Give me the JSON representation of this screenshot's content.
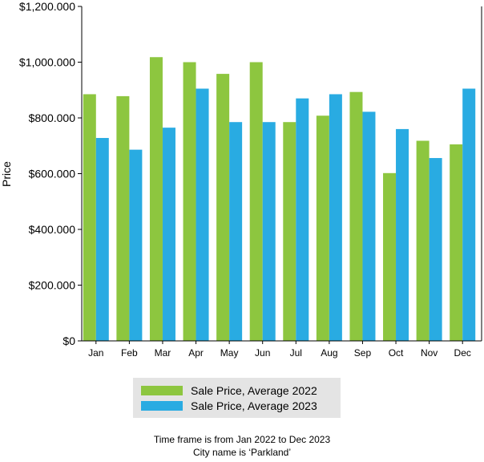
{
  "chart_data": {
    "type": "bar",
    "categories": [
      "Jan",
      "Feb",
      "Mar",
      "Apr",
      "May",
      "Jun",
      "Jul",
      "Aug",
      "Sep",
      "Oct",
      "Nov",
      "Dec"
    ],
    "series": [
      {
        "name": "Sale Price, Average 2022",
        "color": "#8dc63f",
        "values": [
          885000,
          878000,
          1018000,
          1000000,
          958000,
          1000000,
          785000,
          808000,
          893000,
          602000,
          718000,
          705000
        ]
      },
      {
        "name": "Sale Price, Average 2023",
        "color": "#29abe2",
        "values": [
          728000,
          686000,
          765000,
          905000,
          785000,
          785000,
          870000,
          885000,
          822000,
          760000,
          656000,
          905000
        ]
      }
    ],
    "ylabel": "Price",
    "xlabel": "",
    "ylim": [
      0,
      1200000
    ],
    "yticks": [
      0,
      200000,
      400000,
      600000,
      800000,
      1000000,
      1200000
    ],
    "ytick_labels": [
      "$0",
      "$200.000",
      "$400.000",
      "$600.000",
      "$800.000",
      "$1,000.000",
      "$1,200.000"
    ],
    "grid": false,
    "legend_position": "bottom"
  },
  "legend": {
    "items": [
      {
        "label": "Sale Price, Average 2022",
        "color": "#8dc63f"
      },
      {
        "label": "Sale Price, Average 2023",
        "color": "#29abe2"
      }
    ]
  },
  "footnote": {
    "line1": "Time frame is from Jan 2022 to Dec 2023",
    "line2": "City name is ‘Parkland’"
  }
}
